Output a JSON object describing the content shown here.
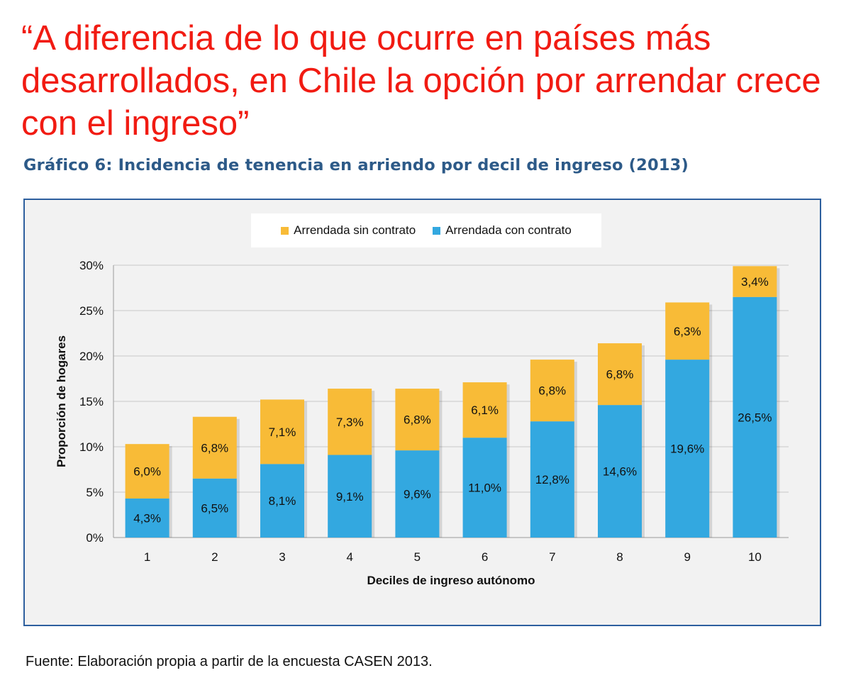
{
  "headline": "“A diferencia de lo que ocurre en países más desarrollados, en Chile la opción por arrendar crece con el ingreso”",
  "chart_title": "Gráfico 6: Incidencia de tenencia en arriendo por decil de ingreso (2013)",
  "source_note": "Fuente: Elaboración propia a partir de la encuesta CASEN 2013.",
  "colors": {
    "headline": "#f11b12",
    "title": "#2d5a88",
    "con_contrato": "#33a8e0",
    "sin_contrato": "#f8bb37",
    "frame_border": "#2d5f9e"
  },
  "chart_data": {
    "type": "bar",
    "stacked": true,
    "title": "Gráfico 6: Incidencia de tenencia en arriendo por decil de ingreso (2013)",
    "xlabel": "Deciles de ingreso autónomo",
    "ylabel": "Proporción de hogares",
    "ylim": [
      0,
      30
    ],
    "yticks": [
      0,
      5,
      10,
      15,
      20,
      25,
      30
    ],
    "ytick_labels": [
      "0%",
      "5%",
      "10%",
      "15%",
      "20%",
      "25%",
      "30%"
    ],
    "categories": [
      "1",
      "2",
      "3",
      "4",
      "5",
      "6",
      "7",
      "8",
      "9",
      "10"
    ],
    "legend_position": "top-center",
    "series": [
      {
        "name": "Arrendada con contrato",
        "color": "#33a8e0",
        "values": [
          4.3,
          6.5,
          8.1,
          9.1,
          9.6,
          11.0,
          12.8,
          14.6,
          19.6,
          26.5
        ],
        "labels": [
          "4,3%",
          "6,5%",
          "8,1%",
          "9,1%",
          "9,6%",
          "11,0%",
          "12,8%",
          "14,6%",
          "19,6%",
          "26,5%"
        ]
      },
      {
        "name": "Arrendada sin contrato",
        "color": "#f8bb37",
        "values": [
          6.0,
          6.8,
          7.1,
          7.3,
          6.8,
          6.1,
          6.8,
          6.8,
          6.3,
          3.4
        ],
        "labels": [
          "6,0%",
          "6,8%",
          "7,1%",
          "7,3%",
          "6,8%",
          "6,1%",
          "6,8%",
          "6,8%",
          "6,3%",
          "3,4%"
        ]
      }
    ],
    "legend": [
      "Arrendada sin contrato",
      "Arrendada con contrato"
    ]
  }
}
